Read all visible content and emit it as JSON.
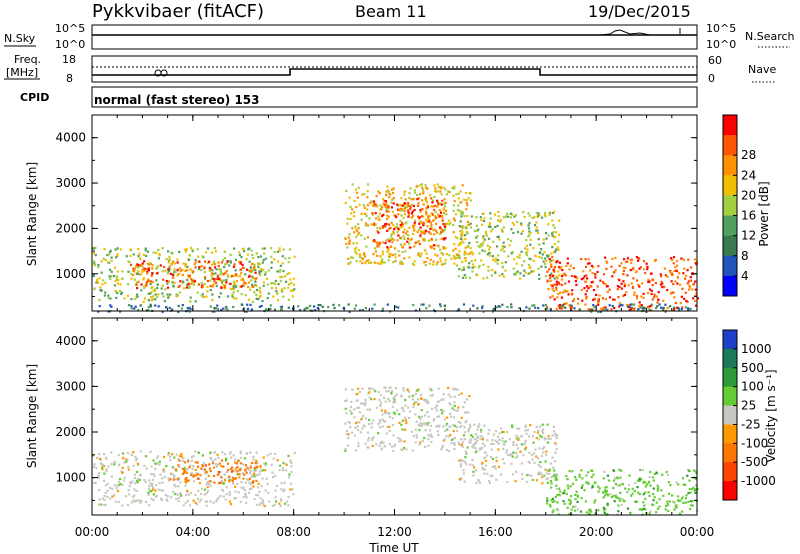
{
  "header": {
    "title": "Pykkvibaer (fitACF)",
    "beam": "Beam 11",
    "date": "19/Dec/2015"
  },
  "nsky_panel": {
    "left_label": "N.Sky",
    "left_ticks": [
      "10^5",
      "10^0"
    ],
    "right_label": "N.Search",
    "right_ticks": [
      "10^5",
      "10^0"
    ]
  },
  "freq_panel": {
    "left_label_1": "Freq.",
    "left_label_2": "[MHz]",
    "left_ticks": [
      "18",
      "8"
    ],
    "right_label": "Nave",
    "right_ticks": [
      "60",
      "0"
    ]
  },
  "cpid_panel": {
    "label": "CPID",
    "mode_text": "normal (fast stereo) 153"
  },
  "colors": {
    "power_scale": [
      "#0000ff",
      "#2255bb",
      "#3a7a50",
      "#52a060",
      "#a0d040",
      "#f0c000",
      "#ff9000",
      "#ff5500",
      "#ff0000"
    ],
    "velocity_scale": [
      "#1e3fc8",
      "#1a7a5a",
      "#2e9a3a",
      "#66cc33",
      "#c8c8c0",
      "#ff9900",
      "#ff7700",
      "#ff4400",
      "#ff0000"
    ]
  },
  "chart_data": [
    {
      "type": "heatmap",
      "panel": "power",
      "ylabel": "Slant Range [km]",
      "yticks": [
        "1000",
        "2000",
        "3000",
        "4000"
      ],
      "ylim": [
        180,
        4500
      ],
      "xlim": [
        0,
        24
      ],
      "xticks": [
        "00:00",
        "04:00",
        "08:00",
        "12:00",
        "16:00",
        "20:00",
        "00:00"
      ],
      "colorbar_label": "Power [dB]",
      "colorbar_ticks": [
        "4",
        "8",
        "12",
        "16",
        "20",
        "24",
        "28"
      ],
      "colorbar_range": [
        0,
        30
      ],
      "regions": [
        {
          "t0": 0.0,
          "t1": 8.0,
          "r0": 400,
          "r1": 1600,
          "level": 16
        },
        {
          "t0": 1.5,
          "t1": 6.5,
          "r0": 700,
          "r1": 1300,
          "level": 26
        },
        {
          "t0": 10.0,
          "t1": 15.0,
          "r0": 1200,
          "r1": 3000,
          "level": 18
        },
        {
          "t0": 11.0,
          "t1": 14.0,
          "r0": 1600,
          "r1": 2700,
          "level": 26
        },
        {
          "t0": 14.5,
          "t1": 18.5,
          "r0": 900,
          "r1": 2400,
          "level": 14
        },
        {
          "t0": 18.0,
          "t1": 24.0,
          "r0": 200,
          "r1": 1400,
          "level": 26
        },
        {
          "t0": 0.0,
          "t1": 24.0,
          "r0": 180,
          "r1": 350,
          "level": 8
        }
      ]
    },
    {
      "type": "heatmap",
      "panel": "velocity",
      "ylabel": "Slant Range [km]",
      "yticks": [
        "1000",
        "2000",
        "3000",
        "4000"
      ],
      "ylim": [
        180,
        4500
      ],
      "xlim": [
        0,
        24
      ],
      "xticks": [
        "00:00",
        "04:00",
        "08:00",
        "12:00",
        "16:00",
        "20:00",
        "00:00"
      ],
      "xlabel": "Time UT",
      "colorbar_label": "Velocity [m s⁻¹]",
      "colorbar_ticks": [
        "1000",
        "500",
        "100",
        "25",
        "-25",
        "-100",
        "-500",
        "-1000"
      ],
      "regions": [
        {
          "t0": 0.0,
          "t1": 8.0,
          "r0": 400,
          "r1": 1600,
          "level": 0
        },
        {
          "t0": 3.0,
          "t1": 6.5,
          "r0": 900,
          "r1": 1400,
          "level": -120
        },
        {
          "t0": 10.0,
          "t1": 15.0,
          "r0": 1600,
          "r1": 3000,
          "level": 0
        },
        {
          "t0": 14.5,
          "t1": 18.5,
          "r0": 900,
          "r1": 2200,
          "level": 0
        },
        {
          "t0": 18.0,
          "t1": 24.0,
          "r0": 200,
          "r1": 1200,
          "level": 80
        }
      ]
    }
  ]
}
